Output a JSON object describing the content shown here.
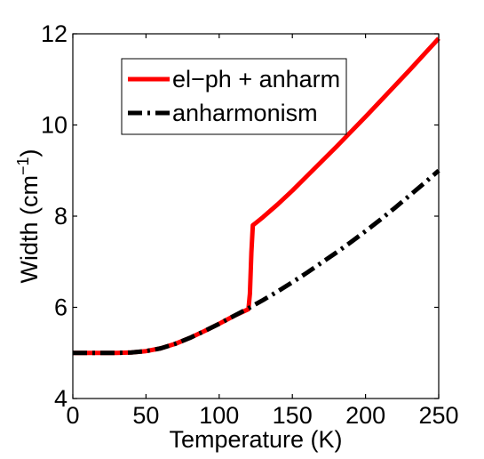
{
  "chart_data": {
    "type": "line",
    "title": "",
    "xlabel": "Temperature (K)",
    "ylabel_main": "Width (cm",
    "ylabel_sup": "−1",
    "ylabel_close": ")",
    "xlim": [
      0,
      250
    ],
    "ylim": [
      4,
      12
    ],
    "xticks": [
      0,
      50,
      100,
      150,
      200,
      250
    ],
    "yticks": [
      4,
      6,
      8,
      10,
      12
    ],
    "xtick_labels": [
      "0",
      "50",
      "100",
      "150",
      "200",
      "250"
    ],
    "ytick_labels": [
      "4",
      "6",
      "8",
      "10",
      "12"
    ],
    "grid": false,
    "legend_position": "top-center",
    "series": [
      {
        "name": "el−ph + anharm",
        "color": "#ff0000",
        "style": "solid",
        "x": [
          0,
          10,
          20,
          30,
          40,
          50,
          60,
          70,
          80,
          90,
          100,
          110,
          120,
          121,
          122,
          123,
          125,
          130,
          140,
          150,
          160,
          170,
          180,
          190,
          200,
          210,
          220,
          230,
          240,
          250
        ],
        "y": [
          5.0,
          5.0,
          5.0,
          5.0,
          5.01,
          5.04,
          5.1,
          5.2,
          5.33,
          5.48,
          5.64,
          5.81,
          5.96,
          6.3,
          7.2,
          7.8,
          7.85,
          7.98,
          8.26,
          8.56,
          8.88,
          9.2,
          9.52,
          9.85,
          10.18,
          10.52,
          10.86,
          11.2,
          11.55,
          11.9
        ]
      },
      {
        "name": "anharmonism",
        "color": "#000000",
        "style": "dashdot",
        "x": [
          0,
          10,
          20,
          30,
          40,
          50,
          60,
          70,
          80,
          90,
          100,
          110,
          120,
          130,
          140,
          150,
          160,
          170,
          180,
          190,
          200,
          210,
          220,
          230,
          240,
          250
        ],
        "y": [
          5.0,
          5.0,
          5.0,
          5.0,
          5.01,
          5.04,
          5.1,
          5.2,
          5.33,
          5.48,
          5.64,
          5.81,
          5.98,
          6.16,
          6.35,
          6.55,
          6.76,
          6.98,
          7.2,
          7.43,
          7.67,
          7.92,
          8.18,
          8.45,
          8.72,
          9.0
        ]
      }
    ]
  }
}
